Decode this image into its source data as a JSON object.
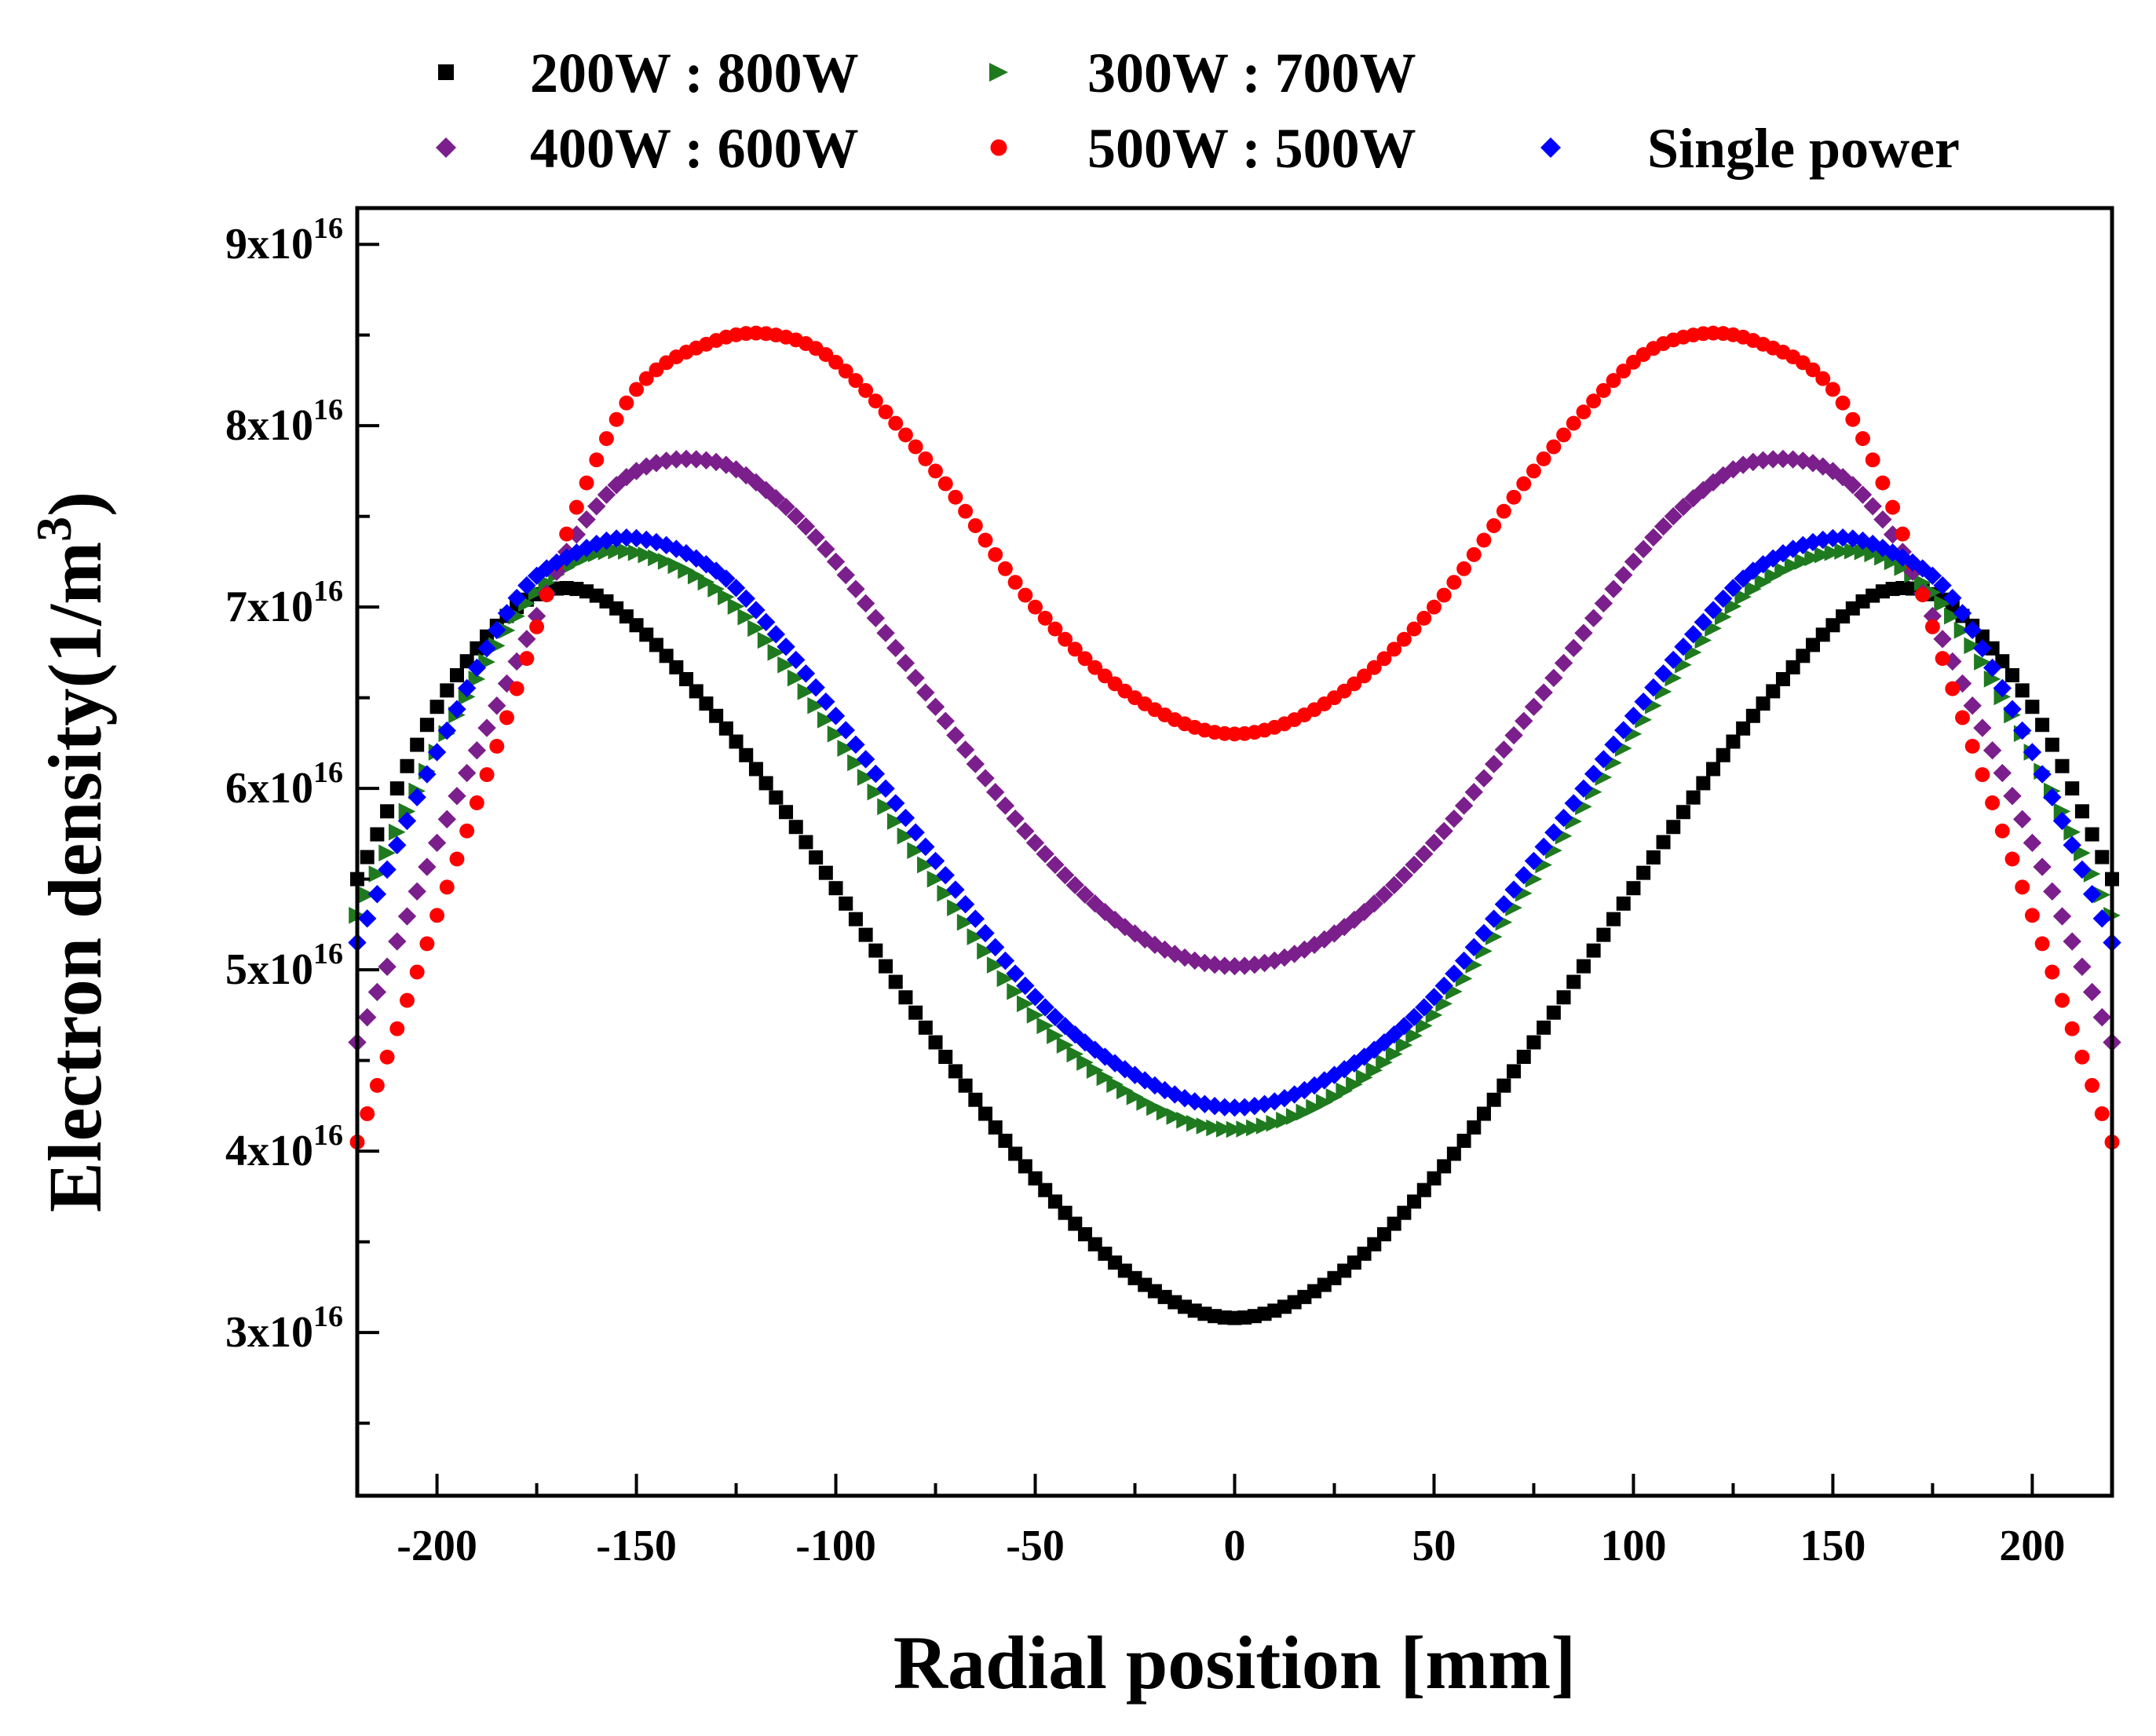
{
  "chart_data": {
    "type": "scatter",
    "title": "",
    "xlabel": "Radial position [mm]",
    "ylabel": "Electron density(1/m³)",
    "xlabel_text": "Radial position [mm]",
    "ylabel_text": "Electron density(1/m",
    "ylabel_exponent": "3",
    "ylabel_close": ")",
    "xlim": [
      -220,
      220
    ],
    "ylim": [
      2.1e+16,
      9.2e+16
    ],
    "xticks": [
      -200,
      -150,
      -100,
      -50,
      0,
      50,
      100,
      150,
      200
    ],
    "xtick_labels": [
      "-200",
      "-150",
      "-100",
      "-50",
      "0",
      "50",
      "100",
      "150",
      "200"
    ],
    "yticks": [
      3e+16,
      4e+16,
      5e+16,
      6e+16,
      7e+16,
      8e+16,
      9e+16
    ],
    "ytick_labels": [
      {
        "mantissa": "3x10",
        "exponent": "16"
      },
      {
        "mantissa": "4x10",
        "exponent": "16"
      },
      {
        "mantissa": "5x10",
        "exponent": "16"
      },
      {
        "mantissa": "6x10",
        "exponent": "16"
      },
      {
        "mantissa": "7x10",
        "exponent": "16"
      },
      {
        "mantissa": "8x10",
        "exponent": "16"
      },
      {
        "mantissa": "9x10",
        "exponent": "16"
      }
    ],
    "legend_position": "top",
    "grid": false,
    "x": [
      -220,
      -200,
      -180,
      -165,
      -150,
      -130,
      -115,
      -100,
      -75,
      -50,
      -25,
      0,
      25,
      50,
      75,
      100,
      115,
      130,
      150,
      165,
      180,
      200,
      220
    ],
    "series": [
      {
        "name": "200W : 800W",
        "marker": "square",
        "color": "#000000",
        "values": [
          5.5e+16,
          6.45e+16,
          7e+16,
          7.1e+16,
          6.9e+16,
          6.4e+16,
          5.95e+16,
          5.45e+16,
          4.6e+16,
          3.85e+16,
          3.3e+16,
          3.08e+16,
          3.3e+16,
          3.85e+16,
          4.6e+16,
          5.45e+16,
          5.95e+16,
          6.4e+16,
          6.9e+16,
          7.1e+16,
          7e+16,
          6.45e+16,
          5.5e+16
        ]
      },
      {
        "name": "300W : 700W",
        "marker": "triangle-right",
        "color": "#1f7a1f",
        "values": [
          5.3e+16,
          6.2e+16,
          6.95e+16,
          7.25e+16,
          7.3e+16,
          7.1e+16,
          6.75e+16,
          6.3e+16,
          5.5e+16,
          4.75e+16,
          4.3e+16,
          4.12e+16,
          4.3e+16,
          4.75e+16,
          5.5e+16,
          6.3e+16,
          6.75e+16,
          7.1e+16,
          7.3e+16,
          7.25e+16,
          6.95e+16,
          6.2e+16,
          5.3e+16
        ]
      },
      {
        "name": "400W : 600W",
        "marker": "diamond",
        "color": "#7b1f8c",
        "values": [
          4.6e+16,
          5.7e+16,
          6.7e+16,
          7.4e+16,
          7.75e+16,
          7.8e+16,
          7.6e+16,
          7.25e+16,
          6.45e+16,
          5.7e+16,
          5.2e+16,
          5.02e+16,
          5.2e+16,
          5.7e+16,
          6.45e+16,
          7.25e+16,
          7.6e+16,
          7.8e+16,
          7.75e+16,
          7.4e+16,
          6.7e+16,
          5.7e+16,
          4.6e+16
        ]
      },
      {
        "name": "500W : 500W",
        "marker": "circle",
        "color": "#ff0000",
        "values": [
          4.05e+16,
          5.3e+16,
          6.55e+16,
          7.55e+16,
          8.2e+16,
          8.47e+16,
          8.5e+16,
          8.35e+16,
          7.75e+16,
          7e+16,
          6.5e+16,
          6.3e+16,
          6.5e+16,
          7e+16,
          7.75e+16,
          8.35e+16,
          8.5e+16,
          8.47e+16,
          8.2e+16,
          7.55e+16,
          6.55e+16,
          5.3e+16,
          4.05e+16
        ]
      },
      {
        "name": "Single power",
        "marker": "diamond",
        "color": "#0000ff",
        "values": [
          5.15e+16,
          6.2e+16,
          7.05e+16,
          7.3e+16,
          7.38e+16,
          7.2e+16,
          6.85e+16,
          6.4e+16,
          5.6e+16,
          4.85e+16,
          4.42e+16,
          4.24e+16,
          4.42e+16,
          4.85e+16,
          5.6e+16,
          6.4e+16,
          6.85e+16,
          7.2e+16,
          7.38e+16,
          7.3e+16,
          7.05e+16,
          6.2e+16,
          5.15e+16
        ]
      }
    ]
  }
}
